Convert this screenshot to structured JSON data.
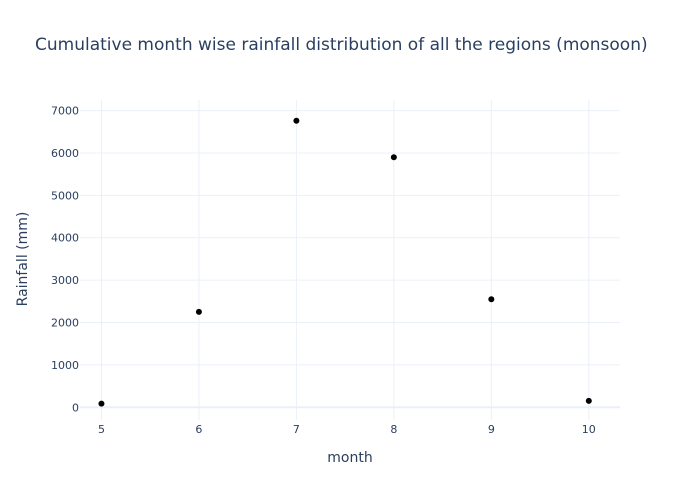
{
  "chart_data": {
    "type": "scatter",
    "title": "Cumulative month wise rainfall distribution of all the regions (monsoon)",
    "xlabel": "month",
    "ylabel": "Rainfall (mm)",
    "x": [
      5,
      6,
      7,
      8,
      9,
      10
    ],
    "y": [
      85,
      2250,
      6760,
      5900,
      2550,
      150
    ],
    "xlim": [
      4.78,
      10.32
    ],
    "ylim": [
      -300,
      7250
    ],
    "x_ticks": [
      5,
      6,
      7,
      8,
      9,
      10
    ],
    "y_ticks": [
      0,
      1000,
      2000,
      3000,
      4000,
      5000,
      6000,
      7000
    ],
    "grid": true,
    "marker_color": "#000000",
    "grid_color": "#ebf0f8",
    "text_color": "#2a3f5f"
  }
}
